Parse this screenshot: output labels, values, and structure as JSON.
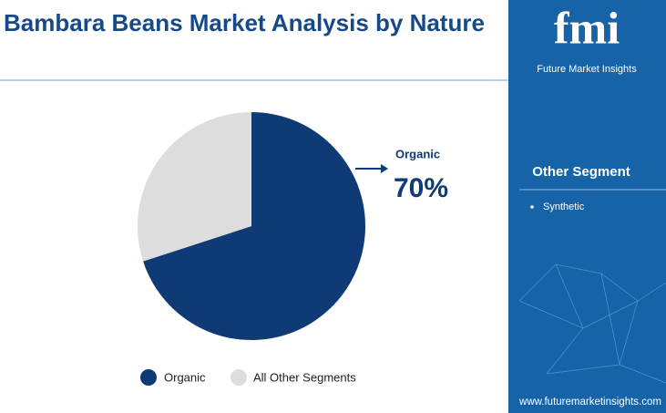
{
  "chart_data": {
    "type": "pie",
    "title": "Bambara Beans Market Analysis by Nature",
    "categories": [
      "Organic",
      "All Other Segments"
    ],
    "values": [
      70,
      30
    ],
    "value_labels": [
      "70%",
      null
    ],
    "colors": [
      "#0e3a75",
      "#dddddd"
    ],
    "legend": "bottom"
  },
  "sidebar": {
    "logo": "fmi",
    "brand": "Future Market Insights",
    "heading": "Other Segment",
    "items": [
      "Synthetic"
    ],
    "website": "www.futuremarketinsights.com"
  }
}
